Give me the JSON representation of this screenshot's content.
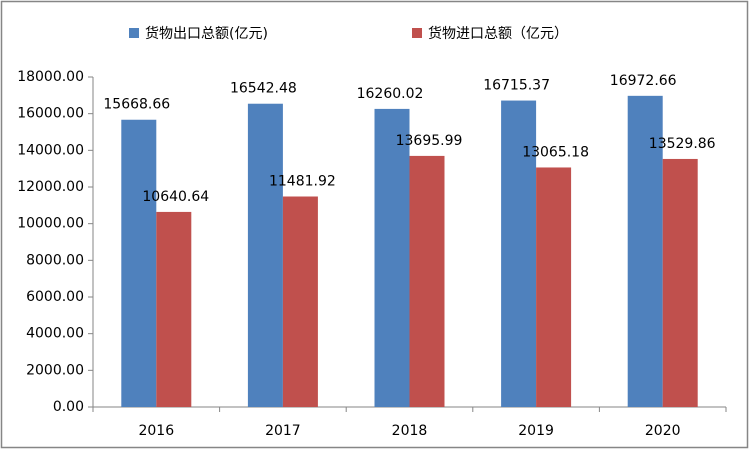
{
  "chart_data": {
    "type": "bar",
    "categories": [
      "2016",
      "2017",
      "2018",
      "2019",
      "2020"
    ],
    "series": [
      {
        "name": "货物出口总额(亿元)",
        "color": "#4f81bd",
        "values": [
          15668.66,
          16542.48,
          16260.02,
          16715.37,
          16972.66
        ]
      },
      {
        "name": "货物进口总额（亿元）",
        "color": "#c0504d",
        "values": [
          10640.64,
          11481.92,
          13695.99,
          13065.18,
          13529.86
        ]
      }
    ],
    "ylim": [
      0,
      18000
    ],
    "yticks": [
      {
        "value": 0,
        "label": "0.00"
      },
      {
        "value": 2000,
        "label": "2000.00"
      },
      {
        "value": 4000,
        "label": "4000.00"
      },
      {
        "value": 6000,
        "label": "6000.00"
      },
      {
        "value": 8000,
        "label": "8000.00"
      },
      {
        "value": 10000,
        "label": "10000.00"
      },
      {
        "value": 12000,
        "label": "12000.00"
      },
      {
        "value": 14000,
        "label": "14000.00"
      },
      {
        "value": 16000,
        "label": "16000.00"
      },
      {
        "value": 18000,
        "label": "18000.00"
      }
    ],
    "grid": false,
    "legend": "top"
  }
}
